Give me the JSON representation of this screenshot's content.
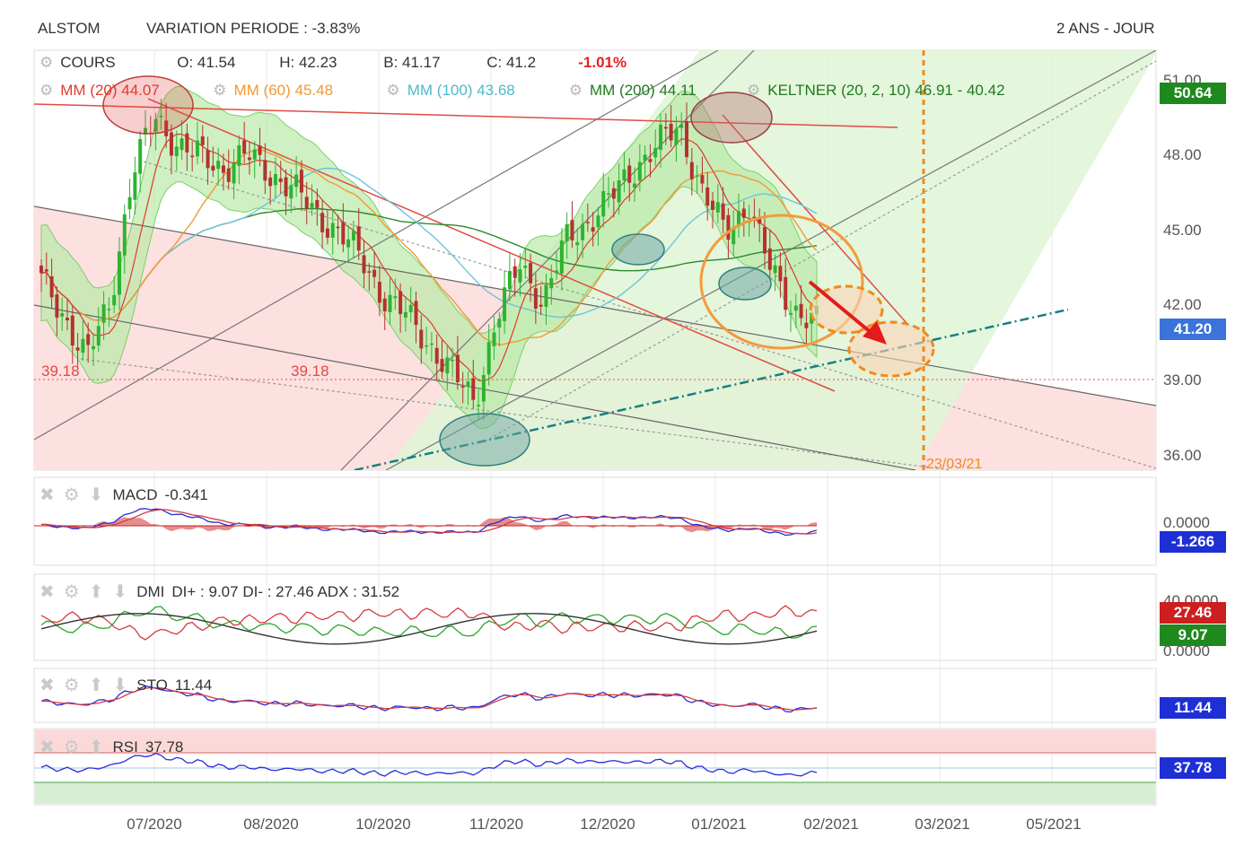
{
  "header": {
    "symbol": "ALSTOM",
    "variation": "VARIATION PERIODE : -3.83%",
    "period": "2 ANS - JOUR"
  },
  "ohlc": {
    "label": "COURS",
    "open": "O: 41.54",
    "high": "H: 42.23",
    "low": "B: 41.17",
    "close": "C: 41.2",
    "change": "-1.01%"
  },
  "indicators": {
    "mm20": "MM (20)  44.07",
    "mm60": "MM (60)  45.48",
    "mm100": "MM (100)  43.68",
    "mm200": "MM (200)  44.11",
    "keltner": "KELTNER (20, 2, 10)  46.91 - 40.42"
  },
  "colors": {
    "price_up": "#2fb32f",
    "price_down": "#b4322d",
    "mm20": "#e03a2e",
    "mm60": "#f09a33",
    "mm100": "#6cc6d6",
    "mm200": "#2d8a2d",
    "support": "#188080",
    "target": "#f08a1c",
    "channel_red": "#fde0e0",
    "channel_green": "#dff5d6",
    "badge_blue": "#1f2fd6",
    "badge_lightblue": "#3a73d9",
    "badge_green": "#1e8a1e",
    "badge_red": "#cc1f1f"
  },
  "price_axis": {
    "ticks": [
      "51.00",
      "48.00",
      "45.00",
      "42.00",
      "39.00",
      "36.00"
    ],
    "badge_high": "50.64",
    "badge_last": "41.20"
  },
  "annotations": {
    "level_left": "39.18",
    "level_mid": "39.18",
    "target_date": "23/03/21"
  },
  "panels": {
    "macd": {
      "label": "MACD",
      "value": "-0.341",
      "axis": "0.0000",
      "badge": "-1.266"
    },
    "dmi": {
      "label": "DMI",
      "values": "DI+ : 9.07 DI- : 27.46 ADX : 31.52",
      "axis_top": "40.0000",
      "axis_bottom": "0.0000",
      "badge_red": "27.46",
      "badge_green": "9.07"
    },
    "sto": {
      "label": "STO",
      "value": "11.44",
      "badge": "11.44"
    },
    "rsi": {
      "label": "RSI",
      "value": "37.78",
      "badge": "37.78"
    }
  },
  "x_axis": {
    "labels": [
      "07/2020",
      "08/2020",
      "10/2020",
      "11/2020",
      "12/2020",
      "01/2021",
      "02/2021",
      "03/2021",
      "05/2021"
    ]
  },
  "chart_data": {
    "type": "candlestick",
    "title": "ALSTOM",
    "ylim": [
      35.5,
      51.5
    ],
    "y_ticks": [
      36,
      39,
      42,
      45,
      48,
      51
    ],
    "x_tick_labels": [
      "07/2020",
      "08/2020",
      "10/2020",
      "11/2020",
      "12/2020",
      "01/2021",
      "02/2021",
      "03/2021",
      "05/2021"
    ],
    "close_path": [
      [
        "06/2020",
        42.9
      ],
      [
        "06/2020",
        41.5
      ],
      [
        "06/2020",
        39.8
      ],
      [
        "06/2020",
        42.0
      ],
      [
        "06/2020",
        47.2
      ],
      [
        "07/2020",
        49.4
      ],
      [
        "07/2020",
        48.3
      ],
      [
        "07/2020",
        47.8
      ],
      [
        "07/2020",
        47.4
      ],
      [
        "08/2020",
        47.9
      ],
      [
        "08/2020",
        47.2
      ],
      [
        "08/2020",
        46.6
      ],
      [
        "09/2020",
        45.6
      ],
      [
        "09/2020",
        44.9
      ],
      [
        "09/2020",
        43.8
      ],
      [
        "10/2020",
        42.3
      ],
      [
        "10/2020",
        41.5
      ],
      [
        "10/2020",
        40.4
      ],
      [
        "10/2020",
        39.2
      ],
      [
        "11/2020",
        38.1
      ],
      [
        "11/2020",
        41.5
      ],
      [
        "11/2020",
        43.6
      ],
      [
        "11/2020",
        42.0
      ],
      [
        "12/2020",
        44.5
      ],
      [
        "12/2020",
        45.3
      ],
      [
        "12/2020",
        46.2
      ],
      [
        "12/2020",
        47.4
      ],
      [
        "01/2021",
        48.3
      ],
      [
        "01/2021",
        49.0
      ],
      [
        "01/2021",
        46.4
      ],
      [
        "01/2021",
        44.8
      ],
      [
        "01/2021",
        46.0
      ],
      [
        "01/2021",
        43.2
      ],
      [
        "02/2021",
        41.8
      ],
      [
        "02/2021",
        41.2
      ]
    ],
    "last": {
      "open": 41.54,
      "high": 42.23,
      "low": 41.17,
      "close": 41.2,
      "change_pct": -1.01
    },
    "moving_averages": [
      {
        "name": "MM (20)",
        "value": 44.07
      },
      {
        "name": "MM (60)",
        "value": 45.48
      },
      {
        "name": "MM (100)",
        "value": 43.68
      },
      {
        "name": "MM (200)",
        "value": 44.11
      }
    ],
    "keltner": {
      "upper": 46.91,
      "lower": 40.42
    },
    "support_level": 39.18,
    "target_date": "23/03/21",
    "variation_pct": -3.83,
    "macd": -0.341,
    "macd_signal": -1.266,
    "dmi": {
      "di_plus": 9.07,
      "di_minus": 27.46,
      "adx": 31.52
    },
    "sto": 11.44,
    "rsi": 37.78
  }
}
